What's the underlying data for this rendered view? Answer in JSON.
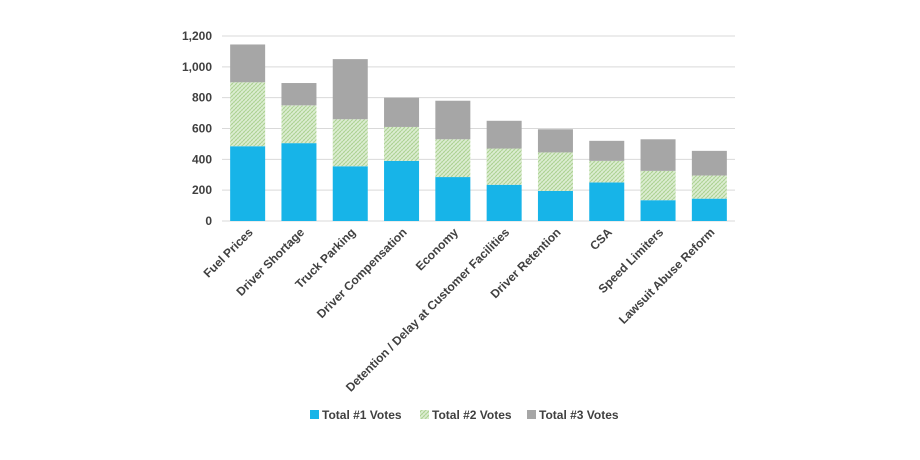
{
  "chart_data": {
    "type": "bar",
    "stacked": true,
    "title": "",
    "xlabel": "",
    "ylabel": "",
    "ylim": [
      0,
      1200
    ],
    "yticks": [
      0,
      200,
      400,
      600,
      800,
      1000,
      1200
    ],
    "ytick_labels": [
      "0",
      "200",
      "400",
      "600",
      "800",
      "1,000",
      "1,200"
    ],
    "grid": true,
    "legend_position": "bottom",
    "categories": [
      "Fuel Prices",
      "Driver Shortage",
      "Truck Parking",
      "Driver Compensation",
      "Economy",
      "Detention / Delay at Customer Facilities",
      "Driver Retention",
      "CSA",
      "Speed Limiters",
      "Lawsuit Abuse Reform"
    ],
    "series": [
      {
        "name": "Total #1 Votes",
        "color": "#17b4e8",
        "pattern": "solid",
        "values": [
          485,
          505,
          355,
          390,
          285,
          235,
          195,
          250,
          135,
          145
        ]
      },
      {
        "name": "Total #2 Votes",
        "color": "#a9d08e",
        "pattern": "hatched",
        "values": [
          415,
          245,
          305,
          220,
          245,
          235,
          250,
          140,
          190,
          150
        ]
      },
      {
        "name": "Total #3 Votes",
        "color": "#a6a6a6",
        "pattern": "solid",
        "values": [
          245,
          145,
          390,
          190,
          250,
          180,
          150,
          130,
          205,
          160
        ]
      }
    ]
  }
}
